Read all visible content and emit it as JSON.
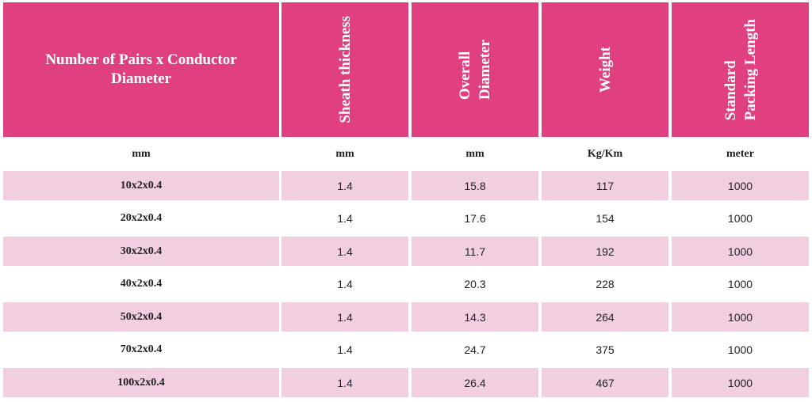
{
  "headers": [
    "Number of Pairs x Conductor Diameter",
    "Sheath thickness",
    "Overall\nDiameter",
    "Weight",
    "Standard\nPacking Length"
  ],
  "units": [
    "mm",
    "mm",
    "mm",
    "Kg/Km",
    "meter"
  ],
  "rows": [
    [
      "10x2x0.4",
      "1.4",
      "15.8",
      "117",
      "1000"
    ],
    [
      "20x2x0.4",
      "1.4",
      "17.6",
      "154",
      "1000"
    ],
    [
      "30x2x0.4",
      "1.4",
      "11.7",
      "192",
      "1000"
    ],
    [
      "40x2x0.4",
      "1.4",
      "20.3",
      "228",
      "1000"
    ],
    [
      "50x2x0.4",
      "1.4",
      "14.3",
      "264",
      "1000"
    ],
    [
      "70x2x0.4",
      "1.4",
      "24.7",
      "375",
      "1000"
    ],
    [
      "100x2x0.4",
      "1.4",
      "26.4",
      "467",
      "1000"
    ]
  ],
  "colors": {
    "header": "#e0407f",
    "shade": "#f1cfe0"
  }
}
